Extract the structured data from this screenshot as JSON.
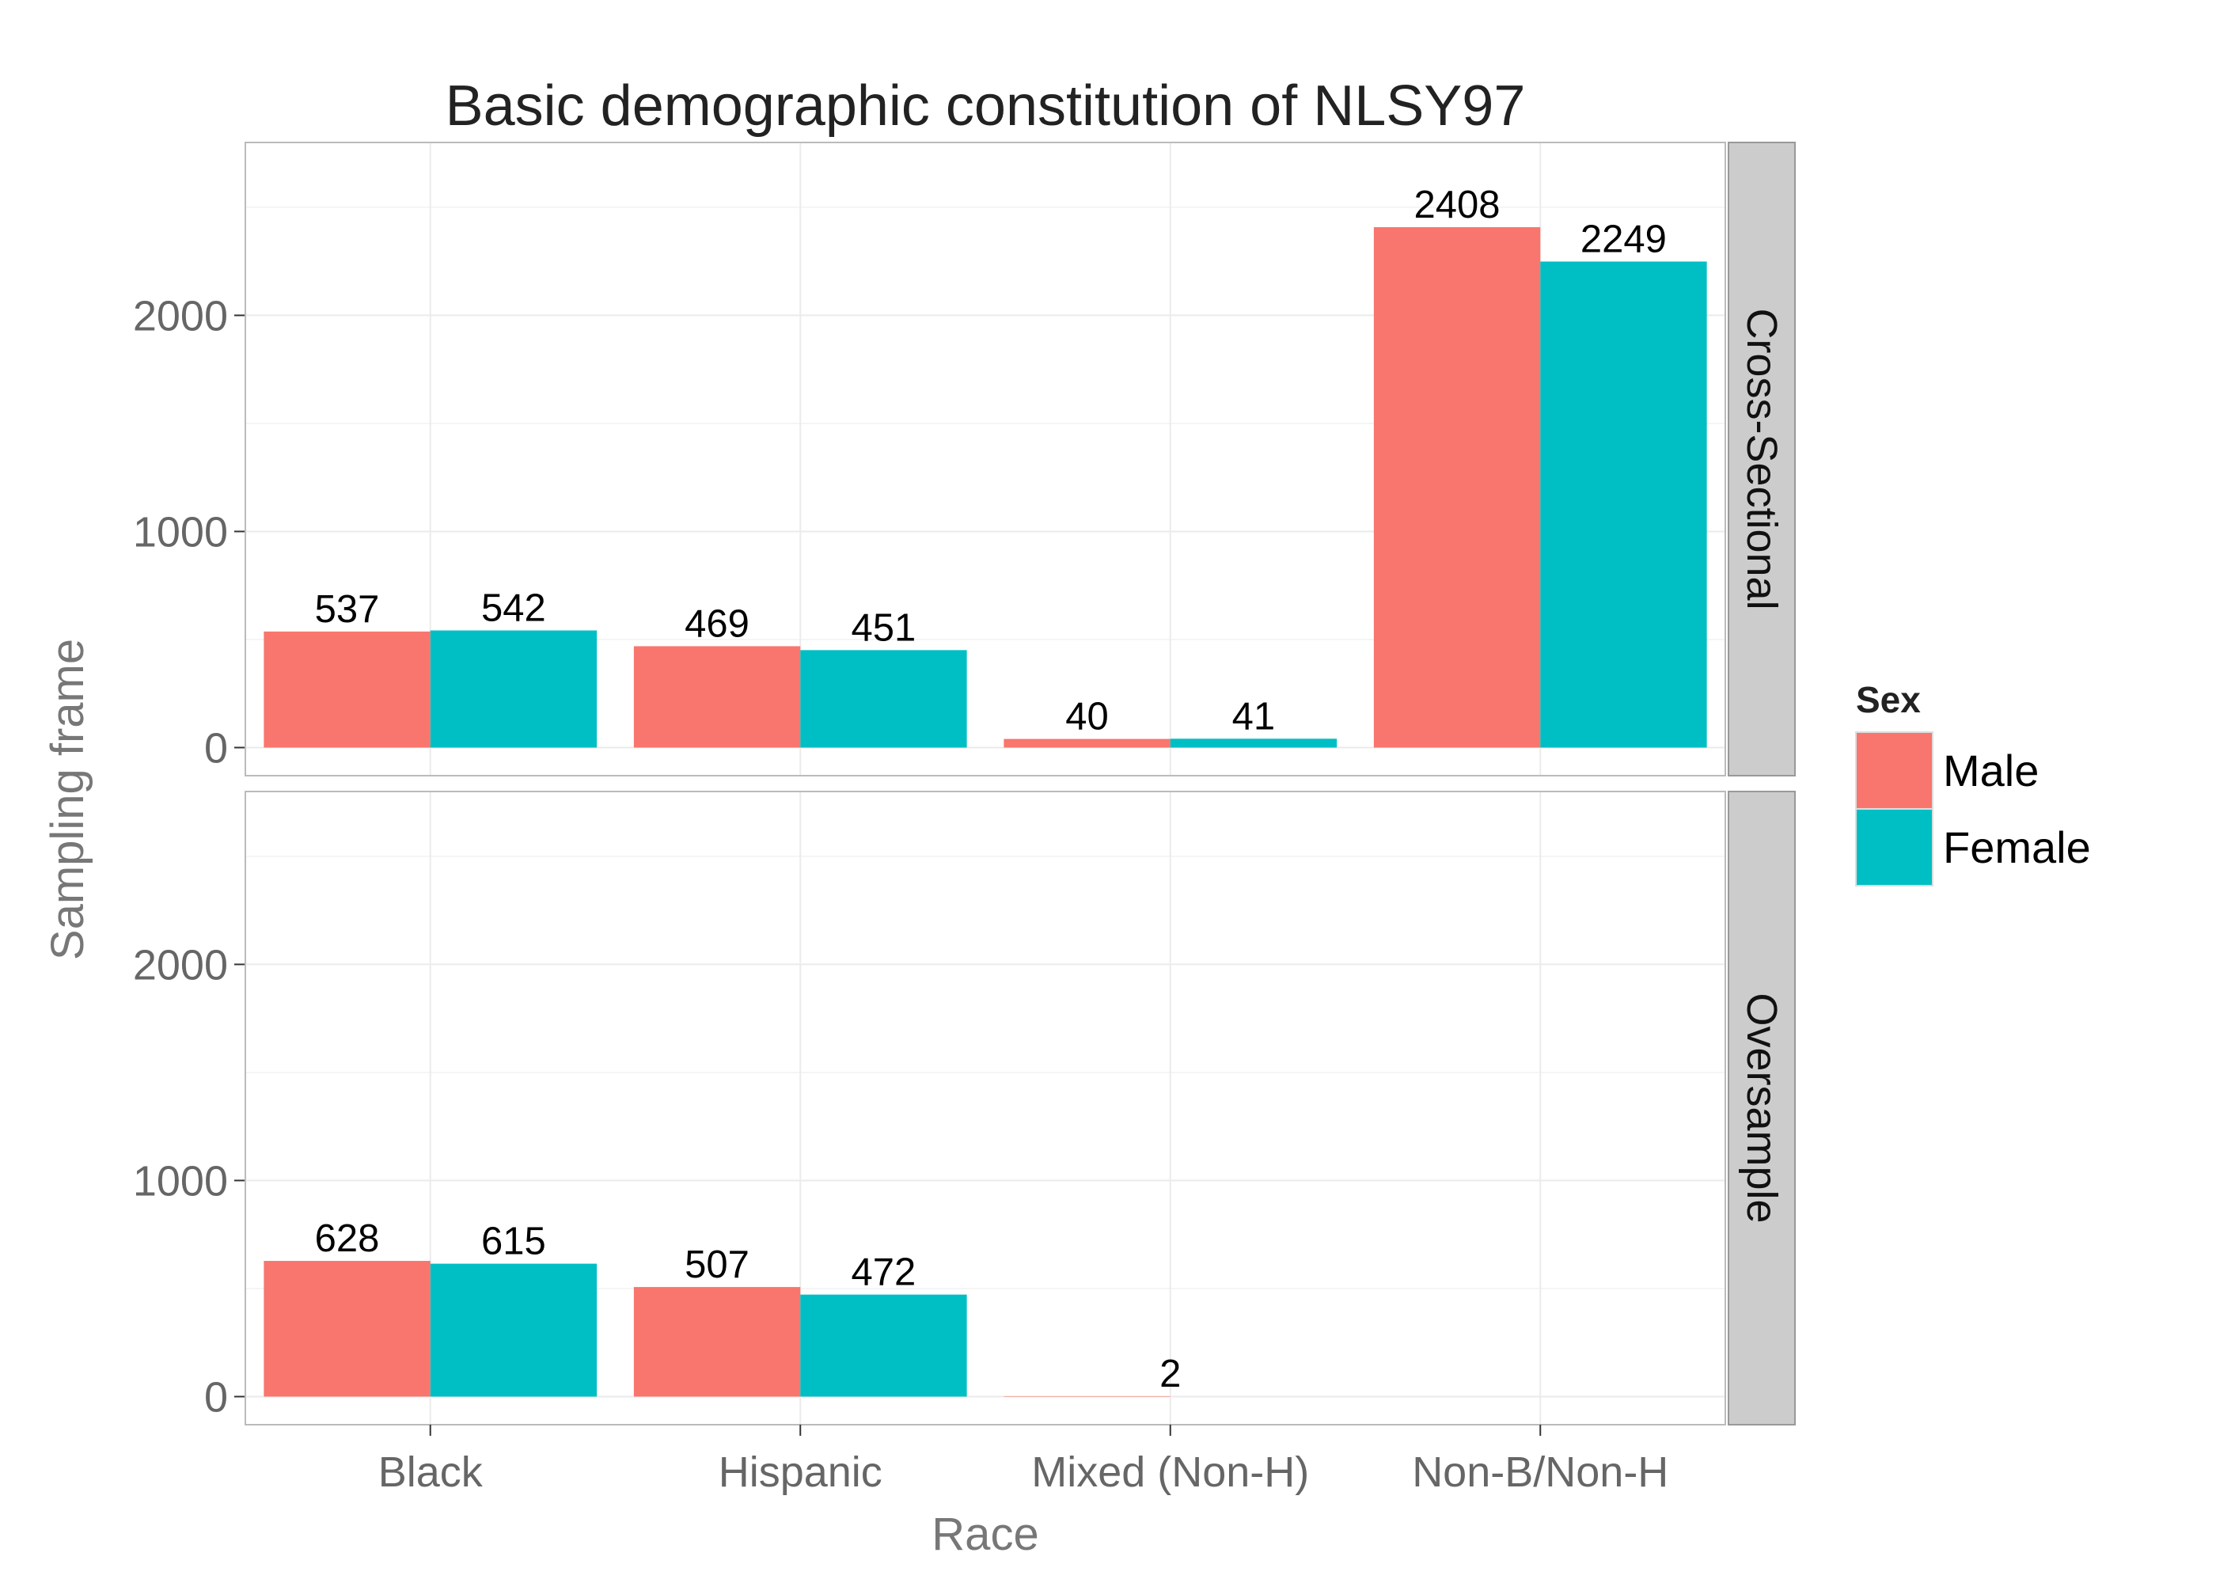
{
  "chart_data": {
    "type": "bar",
    "title": "Basic demographic constitution of NLSY97",
    "xlabel": "Race",
    "ylabel": "Sampling frame",
    "categories": [
      "Black",
      "Hispanic",
      "Mixed (Non-H)",
      "Non-B/Non-H"
    ],
    "yticks": [
      "0",
      "1000",
      "2000"
    ],
    "ylim": [
      -130,
      2800
    ],
    "grid": true,
    "legend": {
      "title": "Sex",
      "placement": "right",
      "entries": [
        {
          "label": "Male",
          "color": "#F8766D"
        },
        {
          "label": "Female",
          "color": "#00BFC4"
        }
      ]
    },
    "facets": [
      {
        "label": "Cross-Sectional",
        "series": [
          {
            "name": "Male",
            "values": [
              537,
              469,
              40,
              2408
            ]
          },
          {
            "name": "Female",
            "values": [
              542,
              451,
              41,
              2249
            ]
          }
        ]
      },
      {
        "label": "Oversample",
        "series": [
          {
            "name": "Male",
            "values": [
              628,
              507,
              2,
              null
            ]
          },
          {
            "name": "Female",
            "values": [
              615,
              472,
              null,
              null
            ]
          }
        ]
      }
    ],
    "colors": {
      "panel_background": "#FFFFFF",
      "grid_major": "#EBEBEB",
      "grid_minor": "#F5F5F5",
      "strip_background": "#CCCCCC"
    }
  }
}
